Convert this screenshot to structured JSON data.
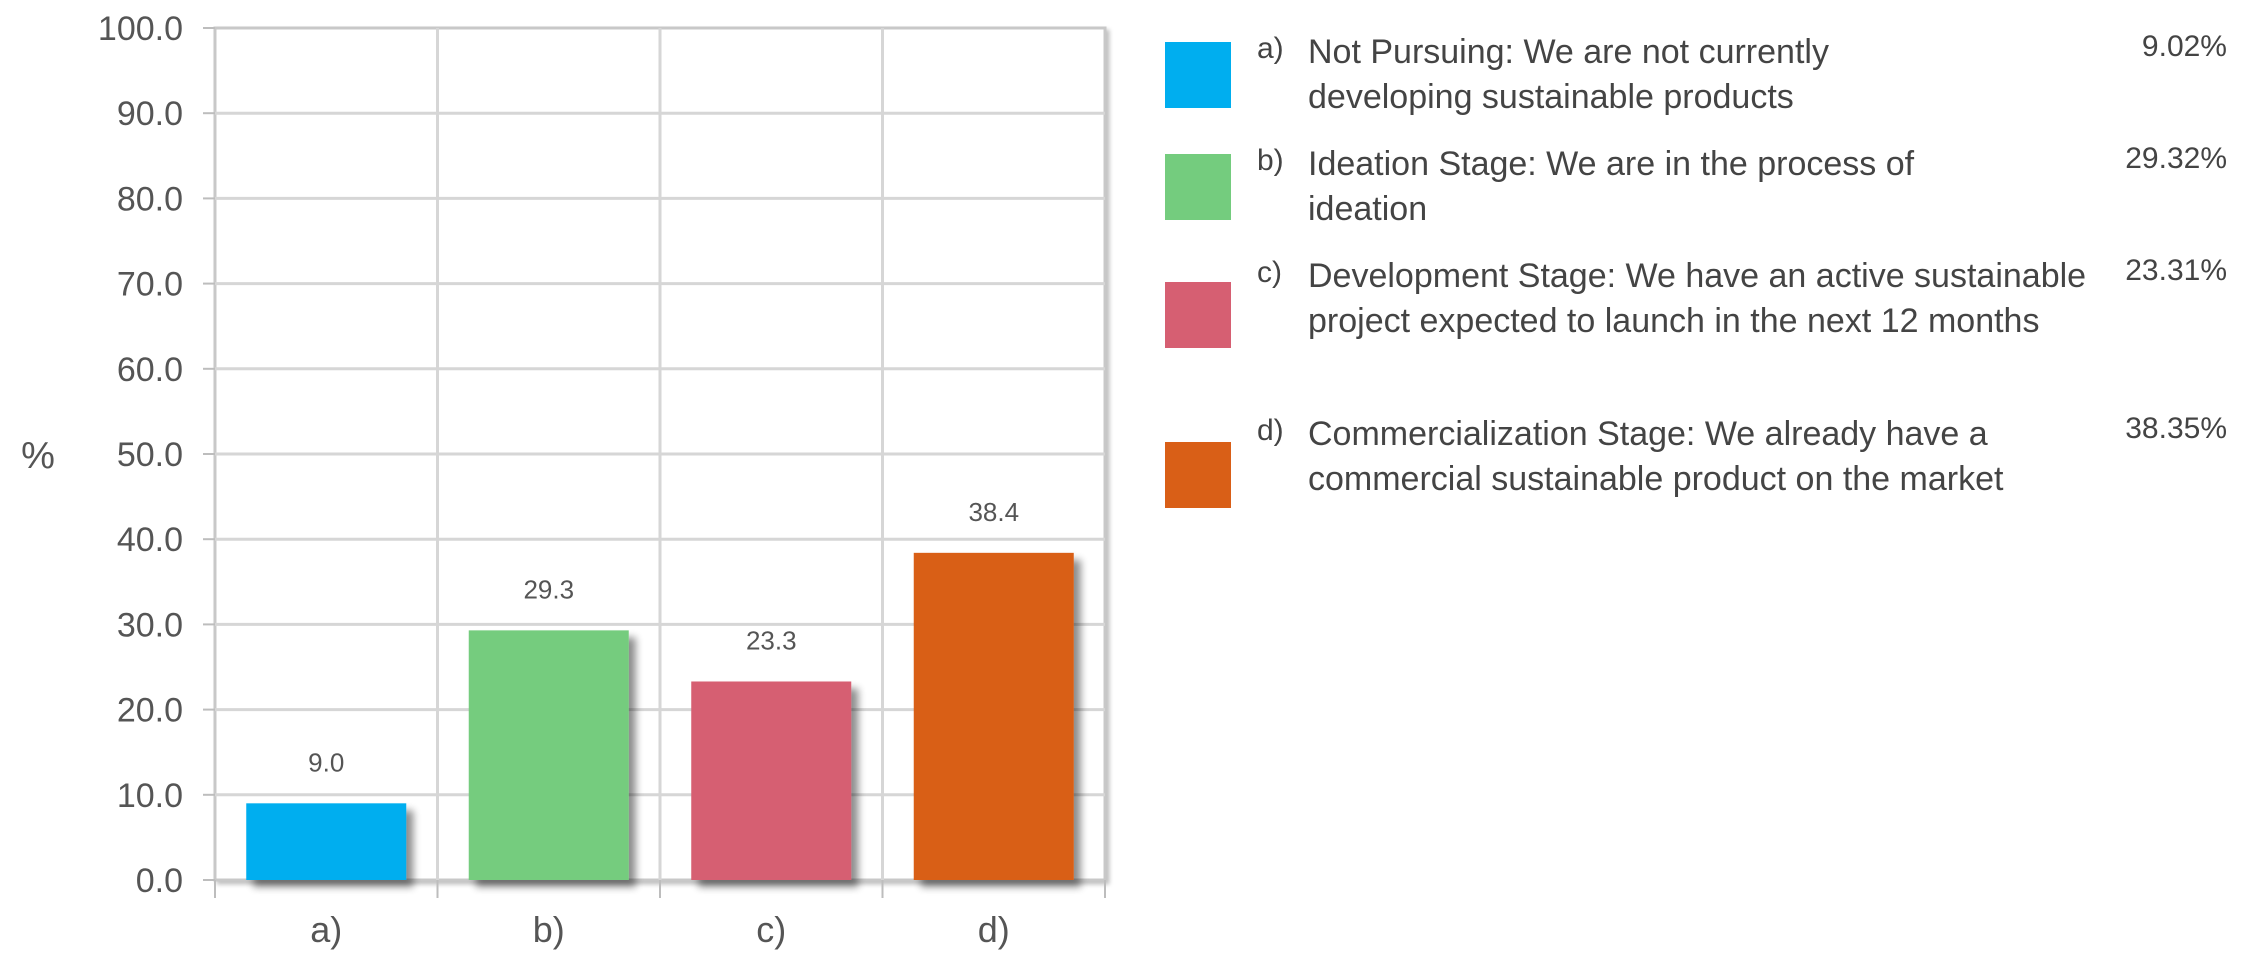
{
  "chart_data": {
    "type": "bar",
    "categories": [
      "a)",
      "b)",
      "c)",
      "d)"
    ],
    "values": [
      9.0,
      29.3,
      23.3,
      38.4
    ],
    "data_labels": [
      "9.0",
      "29.3",
      "23.3",
      "38.4"
    ],
    "colors": [
      "#00AEEF",
      "#74CC7E",
      "#D65F72",
      "#D95F17"
    ],
    "ylabel": "%",
    "ylim": [
      0,
      100
    ],
    "yticks": [
      "0.0",
      "10.0",
      "20.0",
      "30.0",
      "40.0",
      "50.0",
      "60.0",
      "70.0",
      "80.0",
      "90.0",
      "100.0"
    ],
    "grid": true,
    "legend_position": "right",
    "legend": [
      {
        "letter": "a)",
        "text": "Not Pursuing: We are not currently developing sustainable products",
        "percent": "9.02%",
        "color": "#00AEEF"
      },
      {
        "letter": "b)",
        "text": "Ideation Stage: We are in the process of ideation",
        "percent": "29.32%",
        "color": "#74CC7E"
      },
      {
        "letter": "c)",
        "text": "Development Stage: We have an active sustainable project expected to launch in the next 12 months",
        "percent": "23.31%",
        "color": "#D65F72"
      },
      {
        "letter": "d)",
        "text": "Commercialization Stage: We already have a commercial sustainable product on the market",
        "percent": "38.35%",
        "color": "#D95F17"
      }
    ]
  }
}
